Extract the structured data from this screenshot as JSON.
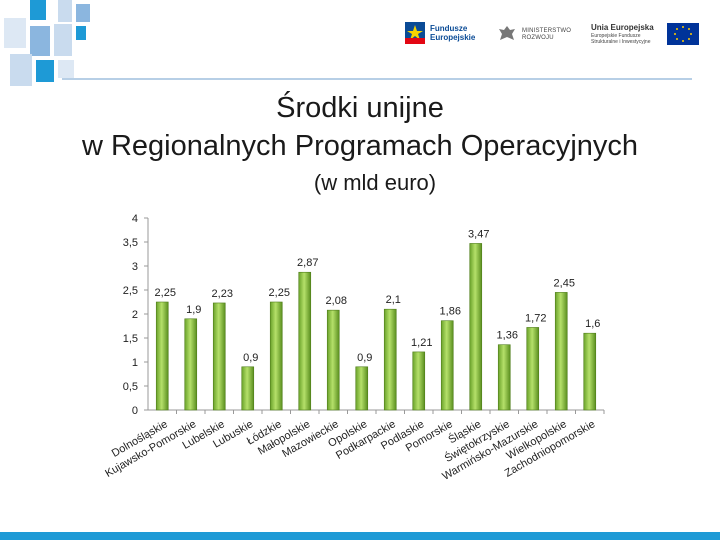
{
  "header": {
    "logo_fundusze": "Fundusze Europejskie",
    "logo_ministerstwo": "MINISTERSTWO ROZWOJU",
    "logo_ue_title": "Unia Europejska",
    "logo_ue_sub": "Europejskie Fundusze Strukturalne i Inwestycyjne"
  },
  "slide": {
    "title_line1": "Środki unijne",
    "title_line2": "w Regionalnych Programach Operacyjnych",
    "subtitle": "(w mld euro)"
  },
  "colors": {
    "bar": "#8cc63f",
    "bar_dark": "#5a8f1f",
    "accent": "#1e9ad6"
  },
  "chart_data": {
    "type": "bar",
    "title": "Środki unijne w Regionalnych Programach Operacyjnych (w mld euro)",
    "xlabel": "",
    "ylabel": "",
    "ylim": [
      0,
      4
    ],
    "yticks": [
      "0",
      "0,5",
      "1",
      "1,5",
      "2",
      "2,5",
      "3",
      "3,5",
      "4"
    ],
    "categories": [
      "Dolnośląskie",
      "Kujawsko-Pomorskie",
      "Lubelskie",
      "Lubuskie",
      "Łódzkie",
      "Małopolskie",
      "Mazowieckie",
      "Opolskie",
      "Podkarpackie",
      "Podlaskie",
      "Pomorskie",
      "Śląskie",
      "Świętokrzyskie",
      "Warmińsko-Mazurskie",
      "Wielkopolskie",
      "Zachodniopomorskie"
    ],
    "values": [
      2.25,
      1.9,
      2.23,
      0.9,
      2.25,
      2.87,
      2.08,
      0.9,
      2.1,
      1.21,
      1.86,
      3.47,
      1.36,
      1.72,
      2.45,
      1.6
    ],
    "labels": [
      "2,25",
      "1,9",
      "2,23",
      "0,9",
      "2,25",
      "2,87",
      "2,08",
      "0,9",
      "2,1",
      "1,21",
      "1,86",
      "3,47",
      "1,36",
      "1,72",
      "2,45",
      "1,6"
    ]
  }
}
